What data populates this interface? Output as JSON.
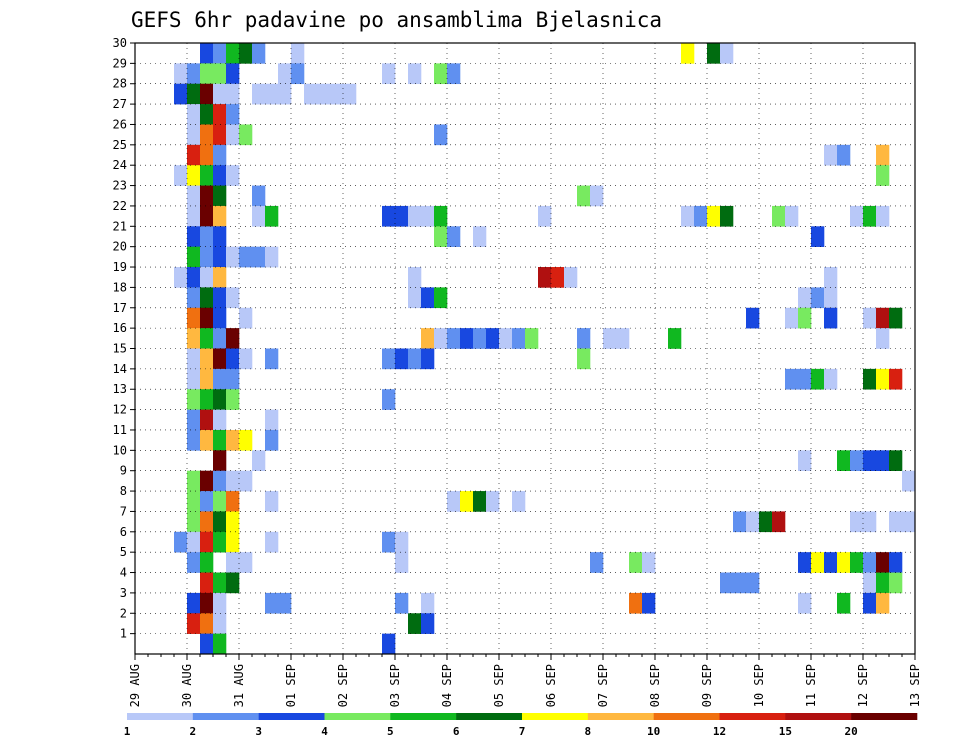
{
  "chart_data": {
    "type": "heatmap",
    "title": "GEFS 6hr padavine po ansamblima Bjelasnica",
    "x_tick_labels": [
      "29 AUG",
      "30 AUG",
      "31 AUG",
      "01 SEP",
      "02 SEP",
      "03 SEP",
      "04 SEP",
      "05 SEP",
      "06 SEP",
      "07 SEP",
      "08 SEP",
      "09 SEP",
      "10 SEP",
      "11 SEP",
      "12 SEP",
      "13 SEP"
    ],
    "y_tick_labels": [
      "1",
      "2",
      "3",
      "4",
      "5",
      "6",
      "7",
      "8",
      "9",
      "10",
      "11",
      "12",
      "13",
      "14",
      "15",
      "16",
      "17",
      "18",
      "19",
      "20",
      "21",
      "22",
      "23",
      "24",
      "25",
      "26",
      "27",
      "28",
      "29",
      "30"
    ],
    "y_range": [
      0,
      30
    ],
    "x_steps_per_day": 4,
    "x_total_steps": 60,
    "grid": "dotted",
    "colorbar": {
      "position": "bottom",
      "tick_labels": [
        "1",
        "2",
        "3",
        "4",
        "5",
        "6",
        "7",
        "8",
        "10",
        "12",
        "15",
        "20"
      ],
      "colors": [
        "#b8c8f8",
        "#6090f0",
        "#1848e0",
        "#78ea60",
        "#10b820",
        "#006c10",
        "#ffff00",
        "#ffb840",
        "#f07010",
        "#d82010",
        "#b01010",
        "#6a0000"
      ]
    },
    "cells": [
      [
        30,
        5,
        2
      ],
      [
        30,
        6,
        1
      ],
      [
        30,
        7,
        4
      ],
      [
        30,
        8,
        5
      ],
      [
        30,
        9,
        1
      ],
      [
        30,
        12,
        0
      ],
      [
        30,
        42,
        6
      ],
      [
        30,
        44,
        5
      ],
      [
        30,
        45,
        0
      ],
      [
        29,
        3,
        0
      ],
      [
        29,
        4,
        1
      ],
      [
        29,
        5,
        3
      ],
      [
        29,
        6,
        3
      ],
      [
        29,
        7,
        2
      ],
      [
        29,
        11,
        0
      ],
      [
        29,
        12,
        1
      ],
      [
        29,
        19,
        0
      ],
      [
        29,
        21,
        0
      ],
      [
        29,
        23,
        3
      ],
      [
        29,
        24,
        1
      ],
      [
        28,
        3,
        2
      ],
      [
        28,
        4,
        5
      ],
      [
        28,
        5,
        11
      ],
      [
        28,
        6,
        0
      ],
      [
        28,
        7,
        0
      ],
      [
        28,
        9,
        0
      ],
      [
        28,
        10,
        0
      ],
      [
        28,
        11,
        0
      ],
      [
        28,
        13,
        0
      ],
      [
        28,
        14,
        0
      ],
      [
        28,
        15,
        0
      ],
      [
        28,
        16,
        0
      ],
      [
        27,
        4,
        0
      ],
      [
        27,
        5,
        5
      ],
      [
        27,
        6,
        9
      ],
      [
        27,
        7,
        1
      ],
      [
        26,
        4,
        0
      ],
      [
        26,
        5,
        8
      ],
      [
        26,
        6,
        9
      ],
      [
        26,
        7,
        0
      ],
      [
        26,
        8,
        3
      ],
      [
        26,
        23,
        1
      ],
      [
        25,
        4,
        9
      ],
      [
        25,
        5,
        8
      ],
      [
        25,
        6,
        1
      ],
      [
        25,
        53,
        0
      ],
      [
        25,
        54,
        1
      ],
      [
        25,
        57,
        7
      ],
      [
        24,
        3,
        0
      ],
      [
        24,
        4,
        6
      ],
      [
        24,
        5,
        4
      ],
      [
        24,
        6,
        2
      ],
      [
        24,
        7,
        0
      ],
      [
        24,
        57,
        3
      ],
      [
        23,
        4,
        0
      ],
      [
        23,
        5,
        11
      ],
      [
        23,
        6,
        5
      ],
      [
        23,
        9,
        1
      ],
      [
        23,
        34,
        3
      ],
      [
        23,
        35,
        0
      ],
      [
        22,
        4,
        0
      ],
      [
        22,
        5,
        11
      ],
      [
        22,
        6,
        7
      ],
      [
        22,
        9,
        0
      ],
      [
        22,
        10,
        4
      ],
      [
        22,
        19,
        2
      ],
      [
        22,
        20,
        2
      ],
      [
        22,
        21,
        0
      ],
      [
        22,
        22,
        0
      ],
      [
        22,
        23,
        4
      ],
      [
        22,
        31,
        0
      ],
      [
        22,
        42,
        0
      ],
      [
        22,
        43,
        1
      ],
      [
        22,
        44,
        6
      ],
      [
        22,
        45,
        5
      ],
      [
        22,
        49,
        3
      ],
      [
        22,
        50,
        0
      ],
      [
        22,
        55,
        0
      ],
      [
        22,
        56,
        4
      ],
      [
        22,
        57,
        0
      ],
      [
        21,
        4,
        2
      ],
      [
        21,
        5,
        1
      ],
      [
        21,
        6,
        2
      ],
      [
        21,
        23,
        3
      ],
      [
        21,
        24,
        1
      ],
      [
        21,
        26,
        0
      ],
      [
        21,
        52,
        2
      ],
      [
        20,
        4,
        4
      ],
      [
        20,
        5,
        1
      ],
      [
        20,
        6,
        2
      ],
      [
        20,
        7,
        0
      ],
      [
        20,
        8,
        1
      ],
      [
        20,
        9,
        1
      ],
      [
        20,
        10,
        0
      ],
      [
        19,
        3,
        0
      ],
      [
        19,
        4,
        2
      ],
      [
        19,
        5,
        0
      ],
      [
        19,
        6,
        7
      ],
      [
        19,
        21,
        0
      ],
      [
        19,
        31,
        10
      ],
      [
        19,
        32,
        9
      ],
      [
        19,
        33,
        0
      ],
      [
        19,
        53,
        0
      ],
      [
        18,
        4,
        1
      ],
      [
        18,
        5,
        5
      ],
      [
        18,
        6,
        2
      ],
      [
        18,
        7,
        0
      ],
      [
        18,
        21,
        0
      ],
      [
        18,
        22,
        2
      ],
      [
        18,
        23,
        4
      ],
      [
        18,
        51,
        0
      ],
      [
        18,
        52,
        1
      ],
      [
        18,
        53,
        0
      ],
      [
        17,
        4,
        8
      ],
      [
        17,
        5,
        11
      ],
      [
        17,
        6,
        2
      ],
      [
        17,
        8,
        0
      ],
      [
        17,
        47,
        2
      ],
      [
        17,
        50,
        0
      ],
      [
        17,
        51,
        3
      ],
      [
        17,
        53,
        2
      ],
      [
        17,
        56,
        0
      ],
      [
        17,
        57,
        10
      ],
      [
        17,
        58,
        5
      ],
      [
        16,
        4,
        7
      ],
      [
        16,
        5,
        4
      ],
      [
        16,
        6,
        1
      ],
      [
        16,
        7,
        11
      ],
      [
        16,
        22,
        7
      ],
      [
        16,
        23,
        0
      ],
      [
        16,
        24,
        1
      ],
      [
        16,
        25,
        2
      ],
      [
        16,
        26,
        1
      ],
      [
        16,
        27,
        2
      ],
      [
        16,
        28,
        0
      ],
      [
        16,
        29,
        1
      ],
      [
        16,
        30,
        3
      ],
      [
        16,
        34,
        1
      ],
      [
        16,
        36,
        0
      ],
      [
        16,
        37,
        0
      ],
      [
        16,
        41,
        4
      ],
      [
        16,
        57,
        0
      ],
      [
        15,
        4,
        0
      ],
      [
        15,
        5,
        7
      ],
      [
        15,
        6,
        11
      ],
      [
        15,
        7,
        2
      ],
      [
        15,
        8,
        0
      ],
      [
        15,
        10,
        1
      ],
      [
        15,
        19,
        1
      ],
      [
        15,
        20,
        2
      ],
      [
        15,
        21,
        1
      ],
      [
        15,
        22,
        2
      ],
      [
        15,
        34,
        3
      ],
      [
        14,
        4,
        0
      ],
      [
        14,
        5,
        7
      ],
      [
        14,
        6,
        1
      ],
      [
        14,
        7,
        1
      ],
      [
        14,
        50,
        1
      ],
      [
        14,
        51,
        1
      ],
      [
        14,
        52,
        4
      ],
      [
        14,
        53,
        0
      ],
      [
        14,
        56,
        5
      ],
      [
        14,
        57,
        6
      ],
      [
        14,
        58,
        9
      ],
      [
        13,
        4,
        3
      ],
      [
        13,
        5,
        4
      ],
      [
        13,
        6,
        5
      ],
      [
        13,
        7,
        3
      ],
      [
        13,
        19,
        1
      ],
      [
        12,
        4,
        1
      ],
      [
        12,
        5,
        10
      ],
      [
        12,
        6,
        0
      ],
      [
        12,
        10,
        0
      ],
      [
        11,
        4,
        1
      ],
      [
        11,
        5,
        7
      ],
      [
        11,
        6,
        4
      ],
      [
        11,
        7,
        7
      ],
      [
        11,
        8,
        6
      ],
      [
        11,
        10,
        1
      ],
      [
        10,
        6,
        11
      ],
      [
        10,
        9,
        0
      ],
      [
        10,
        51,
        0
      ],
      [
        10,
        54,
        4
      ],
      [
        10,
        55,
        1
      ],
      [
        10,
        56,
        2
      ],
      [
        10,
        57,
        2
      ],
      [
        10,
        58,
        5
      ],
      [
        9,
        4,
        3
      ],
      [
        9,
        5,
        11
      ],
      [
        9,
        6,
        1
      ],
      [
        9,
        7,
        0
      ],
      [
        9,
        8,
        0
      ],
      [
        9,
        59,
        0
      ],
      [
        8,
        4,
        3
      ],
      [
        8,
        5,
        1
      ],
      [
        8,
        6,
        3
      ],
      [
        8,
        7,
        8
      ],
      [
        8,
        10,
        0
      ],
      [
        8,
        24,
        0
      ],
      [
        8,
        25,
        6
      ],
      [
        8,
        26,
        5
      ],
      [
        8,
        27,
        0
      ],
      [
        8,
        29,
        0
      ],
      [
        7,
        4,
        3
      ],
      [
        7,
        5,
        8
      ],
      [
        7,
        6,
        5
      ],
      [
        7,
        7,
        6
      ],
      [
        7,
        46,
        1
      ],
      [
        7,
        47,
        0
      ],
      [
        7,
        48,
        5
      ],
      [
        7,
        49,
        10
      ],
      [
        7,
        55,
        0
      ],
      [
        7,
        56,
        0
      ],
      [
        7,
        58,
        0
      ],
      [
        7,
        59,
        0
      ],
      [
        6,
        3,
        1
      ],
      [
        6,
        4,
        0
      ],
      [
        6,
        5,
        9
      ],
      [
        6,
        6,
        4
      ],
      [
        6,
        7,
        6
      ],
      [
        6,
        10,
        0
      ],
      [
        6,
        19,
        1
      ],
      [
        6,
        20,
        0
      ],
      [
        5,
        4,
        1
      ],
      [
        5,
        5,
        4
      ],
      [
        5,
        7,
        0
      ],
      [
        5,
        8,
        0
      ],
      [
        5,
        20,
        0
      ],
      [
        5,
        35,
        1
      ],
      [
        5,
        38,
        3
      ],
      [
        5,
        39,
        0
      ],
      [
        5,
        51,
        2
      ],
      [
        5,
        52,
        6
      ],
      [
        5,
        53,
        2
      ],
      [
        5,
        54,
        6
      ],
      [
        5,
        55,
        4
      ],
      [
        5,
        56,
        1
      ],
      [
        5,
        57,
        11
      ],
      [
        5,
        58,
        2
      ],
      [
        4,
        5,
        9
      ],
      [
        4,
        6,
        4
      ],
      [
        4,
        7,
        5
      ],
      [
        4,
        45,
        1
      ],
      [
        4,
        46,
        1
      ],
      [
        4,
        47,
        1
      ],
      [
        4,
        56,
        0
      ],
      [
        4,
        57,
        4
      ],
      [
        4,
        58,
        3
      ],
      [
        3,
        4,
        2
      ],
      [
        3,
        5,
        11
      ],
      [
        3,
        6,
        0
      ],
      [
        3,
        10,
        1
      ],
      [
        3,
        11,
        1
      ],
      [
        3,
        20,
        1
      ],
      [
        3,
        22,
        0
      ],
      [
        3,
        38,
        8
      ],
      [
        3,
        39,
        2
      ],
      [
        3,
        51,
        0
      ],
      [
        3,
        54,
        4
      ],
      [
        3,
        56,
        2
      ],
      [
        3,
        57,
        7
      ],
      [
        2,
        4,
        9
      ],
      [
        2,
        5,
        8
      ],
      [
        2,
        6,
        0
      ],
      [
        2,
        21,
        5
      ],
      [
        2,
        22,
        2
      ],
      [
        1,
        5,
        2
      ],
      [
        1,
        6,
        4
      ],
      [
        1,
        19,
        2
      ]
    ]
  }
}
